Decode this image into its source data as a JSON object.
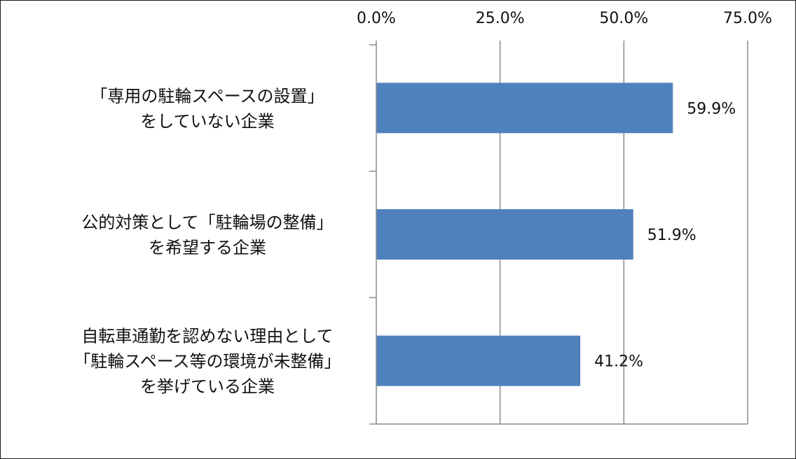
{
  "chart_data": {
    "type": "bar",
    "orientation": "horizontal",
    "x_axis_position": "top",
    "grid": true,
    "categories": [
      [
        "「専用の駐輪スペースの設置」",
        "をしていない企業"
      ],
      [
        "公的対策として「駐輪場の整備」",
        "を希望する企業"
      ],
      [
        "自転車通勤を認めない理由として",
        "「駐輪スペース等の環境が未整備」",
        "を挙げている企業"
      ]
    ],
    "values": [
      59.9,
      51.9,
      41.2
    ],
    "value_labels": [
      "59.9%",
      "51.9%",
      "41.2%"
    ],
    "xlim": [
      0,
      75
    ],
    "ticks": [
      0,
      25,
      50,
      75
    ],
    "tick_labels": [
      "0.0%",
      "25.0%",
      "50.0%",
      "75.0%"
    ],
    "bar_color": "#4F81BD",
    "grid_color": "#8c8c8c",
    "axis_color": "#8c8c8c"
  }
}
